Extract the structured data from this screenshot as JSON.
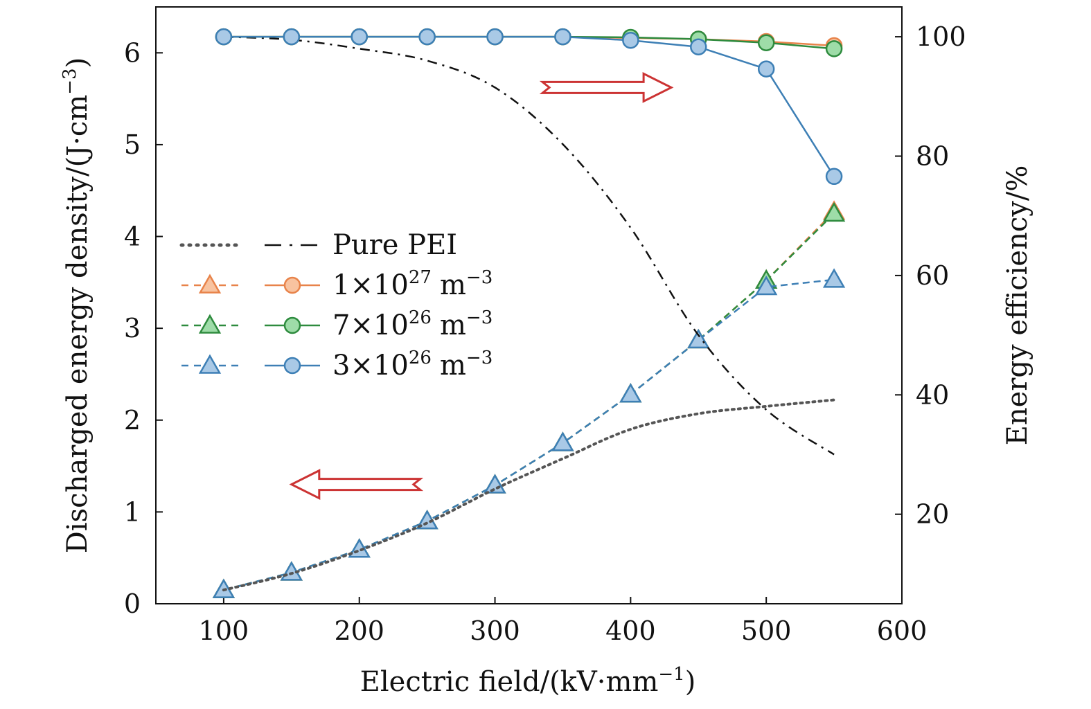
{
  "chart_data": {
    "type": "line",
    "xlabel": "Electric field/(kV·mm",
    "xlabel_sup": "−1",
    "xlabel_end": ")",
    "ylabel_left": "Discharged energy density/(J·cm",
    "ylabel_left_sup": "−3",
    "ylabel_left_end": ")",
    "ylabel_right": "Energy efficiency/%",
    "xlim": [
      50,
      600
    ],
    "ylim_left": [
      0,
      6.5
    ],
    "ylim_right": [
      5,
      105
    ],
    "x_ticks": [
      "100",
      "200",
      "300",
      "400",
      "500",
      "600"
    ],
    "y_left_ticks": [
      "0",
      "1",
      "2",
      "3",
      "4",
      "5",
      "6"
    ],
    "y_right_ticks": [
      "20",
      "40",
      "60",
      "80",
      "100"
    ],
    "x": [
      100,
      150,
      200,
      250,
      300,
      350,
      400,
      450,
      500,
      550
    ],
    "colors": {
      "orange": "#e8834a",
      "green": "#2e8b3e",
      "blue": "#3d7fb5",
      "black": "#111111",
      "gray": "#555555",
      "arrow": "#cc3333"
    },
    "legend": {
      "pure": "Pure PEI",
      "s1": {
        "mant": "1×10",
        "exp": "27",
        "unit": "m",
        "unit_exp": "−3"
      },
      "s2": {
        "mant": "7×10",
        "exp": "26",
        "unit": "m",
        "unit_exp": "−3"
      },
      "s3": {
        "mant": "3×10",
        "exp": "26",
        "unit": "m",
        "unit_exp": "−3"
      }
    },
    "series": [
      {
        "name": "Pure PEI discharged energy density",
        "axis": "left",
        "style": "dotted",
        "color": "#555555",
        "marker": "none",
        "values": [
          0.15,
          0.33,
          0.58,
          0.88,
          1.25,
          1.58,
          1.9,
          2.07,
          2.15,
          2.22
        ]
      },
      {
        "name": "Pure PEI energy efficiency",
        "axis": "right",
        "style": "dashdot",
        "color": "#111111",
        "marker": "none",
        "values": [
          100,
          99.5,
          98,
          96,
          91.5,
          82,
          68,
          50,
          37.5,
          30
        ]
      },
      {
        "name": "1×10^27 m^-3 discharged energy density",
        "axis": "left",
        "style": "dashed",
        "color": "#e8834a",
        "fill": "#f8c3a0",
        "marker": "triangle",
        "values": [
          0.15,
          0.34,
          0.59,
          0.9,
          1.29,
          1.75,
          2.28,
          2.87,
          3.52,
          4.27
        ]
      },
      {
        "name": "7×10^26 m^-3 discharged energy density",
        "axis": "left",
        "style": "dashed",
        "color": "#2e8b3e",
        "fill": "#9edca8",
        "marker": "triangle",
        "values": [
          0.15,
          0.34,
          0.59,
          0.9,
          1.29,
          1.75,
          2.28,
          2.87,
          3.52,
          4.25
        ]
      },
      {
        "name": "3×10^26 m^-3 discharged energy density",
        "axis": "left",
        "style": "dashed",
        "color": "#3d7fb5",
        "fill": "#a9c9e6",
        "marker": "triangle",
        "values": [
          0.15,
          0.34,
          0.59,
          0.9,
          1.29,
          1.75,
          2.28,
          2.87,
          3.45,
          3.53
        ]
      },
      {
        "name": "1×10^27 m^-3 energy efficiency",
        "axis": "right",
        "style": "solid",
        "color": "#e8834a",
        "fill": "#f8c3a0",
        "marker": "circle",
        "values": [
          100,
          100,
          100,
          100,
          100,
          100,
          99.8,
          99.6,
          99.2,
          98.5
        ]
      },
      {
        "name": "7×10^26 m^-3 energy efficiency",
        "axis": "right",
        "style": "solid",
        "color": "#2e8b3e",
        "fill": "#9edca8",
        "marker": "circle",
        "values": [
          100,
          100,
          100,
          100,
          100,
          100,
          99.9,
          99.6,
          99.0,
          98.0
        ]
      },
      {
        "name": "3×10^26 m^-3 energy efficiency",
        "axis": "right",
        "style": "solid",
        "color": "#3d7fb5",
        "fill": "#a9c9e6",
        "marker": "circle",
        "values": [
          100,
          100,
          100,
          100,
          100,
          100,
          99.4,
          98.3,
          94.6,
          76.6
        ]
      }
    ],
    "annotations": [
      {
        "type": "arrow",
        "direction": "right",
        "meaning": "curves refer to right axis (efficiency)",
        "x_from": 335,
        "x_to": 430,
        "y_right": 91.5
      },
      {
        "type": "arrow",
        "direction": "left",
        "meaning": "curves refer to left axis (energy density)",
        "x_from": 245,
        "x_to": 150,
        "y_left": 1.3
      }
    ]
  }
}
